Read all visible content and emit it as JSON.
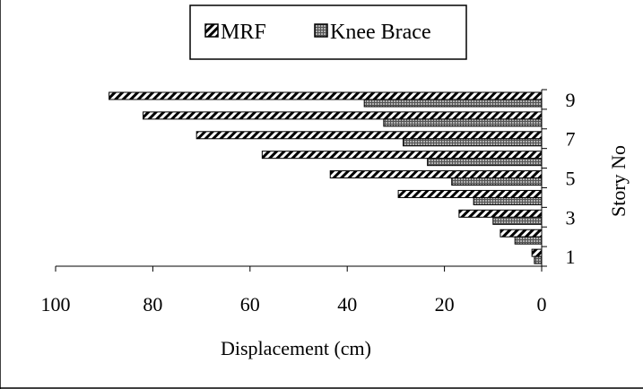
{
  "chart_data": {
    "type": "bar",
    "orientation": "horizontal",
    "x_direction": "reversed",
    "categories": [
      "1",
      "2",
      "3",
      "4",
      "5",
      "6",
      "7",
      "8",
      "9"
    ],
    "category_tick_labels": [
      "1",
      "3",
      "5",
      "7",
      "9"
    ],
    "series": [
      {
        "name": "MRF",
        "values": [
          2,
          8.5,
          17,
          29.5,
          43.5,
          57.5,
          71,
          82,
          89
        ],
        "color": "#000000",
        "pattern": "diagonal-hatch"
      },
      {
        "name": "Knee Brace",
        "values": [
          1.5,
          5.5,
          10,
          14,
          18.5,
          23.5,
          28.5,
          32.5,
          36.5
        ],
        "color": "#808080",
        "pattern": "fine-grid"
      }
    ],
    "xlabel": "Displacement (cm)",
    "ylabel": "Story No",
    "xlim": [
      0,
      100
    ],
    "x_ticks": [
      "100",
      "80",
      "60",
      "40",
      "20",
      "0"
    ],
    "grid": false,
    "legend_position": "top-center"
  }
}
